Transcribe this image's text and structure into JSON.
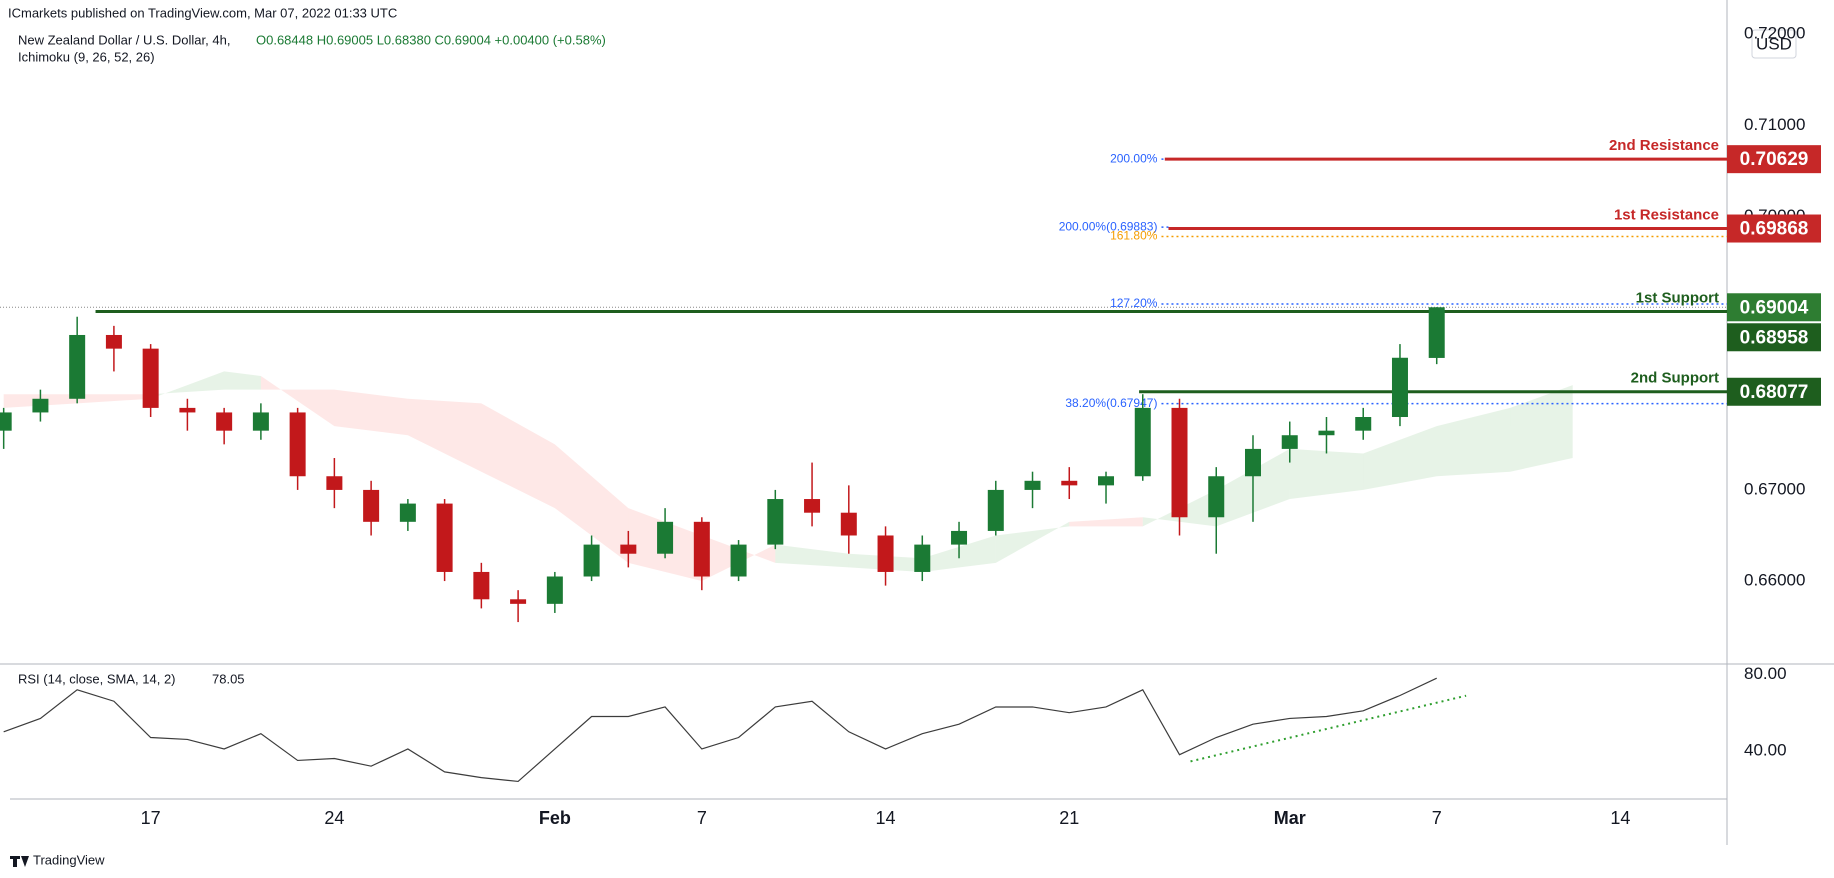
{
  "header": {
    "publisher": "ICmarkets published on TradingView.com, Mar 07, 2022 01:33 UTC",
    "symbol": "New Zealand Dollar / U.S. Dollar, 4h,",
    "ohlc": "O0.68448 H0.69005 L0.68380 C0.69004 +0.00400 (+0.58%)",
    "indicator": "Ichimoku (9, 26, 52, 26)"
  },
  "chart_data": {
    "type": "candlestick",
    "x": [
      -4,
      -3,
      -2,
      -1,
      0,
      1,
      2,
      3,
      4,
      5,
      6,
      7,
      8,
      9,
      10,
      11,
      12,
      13,
      14,
      15,
      16,
      17,
      18,
      19,
      20,
      21,
      22,
      23,
      24,
      25,
      26,
      27,
      28,
      29,
      30,
      31,
      32,
      33,
      34,
      35
    ],
    "open": [
      0.6765,
      0.6785,
      0.68,
      0.687,
      0.6855,
      0.679,
      0.6785,
      0.6765,
      0.6785,
      0.6715,
      0.67,
      0.6665,
      0.6685,
      0.661,
      0.658,
      0.6575,
      0.6605,
      0.664,
      0.663,
      0.6665,
      0.6605,
      0.664,
      0.669,
      0.6675,
      0.665,
      0.661,
      0.664,
      0.6655,
      0.67,
      0.671,
      0.6705,
      0.6715,
      0.679,
      0.667,
      0.6715,
      0.6745,
      0.676,
      0.6765,
      0.678,
      0.68448
    ],
    "high": [
      0.679,
      0.681,
      0.689,
      0.688,
      0.686,
      0.68,
      0.679,
      0.6795,
      0.679,
      0.6735,
      0.671,
      0.669,
      0.669,
      0.662,
      0.659,
      0.661,
      0.665,
      0.6655,
      0.668,
      0.667,
      0.6645,
      0.67,
      0.673,
      0.6705,
      0.666,
      0.665,
      0.6665,
      0.671,
      0.672,
      0.6725,
      0.672,
      0.6805,
      0.68,
      0.6725,
      0.676,
      0.6775,
      0.678,
      0.679,
      0.686,
      0.69005
    ],
    "low": [
      0.6745,
      0.6775,
      0.6795,
      0.683,
      0.678,
      0.6765,
      0.675,
      0.6755,
      0.67,
      0.668,
      0.665,
      0.6655,
      0.66,
      0.657,
      0.6555,
      0.6565,
      0.66,
      0.6615,
      0.6625,
      0.659,
      0.66,
      0.6635,
      0.666,
      0.663,
      0.6595,
      0.66,
      0.6625,
      0.665,
      0.668,
      0.669,
      0.6685,
      0.671,
      0.665,
      0.663,
      0.6665,
      0.673,
      0.674,
      0.6755,
      0.677,
      0.6838
    ],
    "close": [
      0.6785,
      0.68,
      0.687,
      0.6855,
      0.679,
      0.6785,
      0.6765,
      0.6785,
      0.6715,
      0.67,
      0.6665,
      0.6685,
      0.661,
      0.658,
      0.6575,
      0.6605,
      0.664,
      0.663,
      0.6665,
      0.6605,
      0.664,
      0.669,
      0.6675,
      0.665,
      0.661,
      0.664,
      0.6655,
      0.67,
      0.671,
      0.6705,
      0.6715,
      0.679,
      0.667,
      0.6715,
      0.6745,
      0.676,
      0.6765,
      0.678,
      0.6845,
      0.69004
    ],
    "up_color": "#1b7a34",
    "down_color": "#c2181b",
    "xlim": [
      -4.1,
      42.9
    ],
    "xticks": [
      {
        "value": 0,
        "label": "17"
      },
      {
        "value": 5,
        "label": "24"
      },
      {
        "value": 11,
        "label": "Feb"
      },
      {
        "value": 15,
        "label": "7"
      },
      {
        "value": 20,
        "label": "14"
      },
      {
        "value": 25,
        "label": "21"
      },
      {
        "value": 31,
        "label": "Mar"
      },
      {
        "value": 35,
        "label": "7"
      },
      {
        "value": 40,
        "label": "14"
      }
    ],
    "ylim": [
      0.6509,
      0.7209
    ],
    "yticks": [
      {
        "value": 0.66,
        "label": "0.66000"
      },
      {
        "value": 0.67,
        "label": "0.67000"
      },
      {
        "value": 0.68,
        "label": "0.68000"
      },
      {
        "value": 0.69,
        "label": "0.69000"
      },
      {
        "value": 0.7,
        "label": "0.70000"
      },
      {
        "value": 0.71,
        "label": "0.71000"
      },
      {
        "value": 0.72,
        "label": "0.72000"
      }
    ],
    "currency": "USD",
    "ichimoku": {
      "x": [
        -4,
        -2,
        0,
        2,
        3,
        5,
        7,
        9,
        11,
        13,
        15,
        17,
        19,
        21,
        23,
        25,
        27,
        29,
        31,
        33,
        35,
        37,
        38.7
      ],
      "span_a": [
        0.679,
        0.6795,
        0.68,
        0.683,
        0.6825,
        0.677,
        0.676,
        0.672,
        0.668,
        0.662,
        0.66,
        0.664,
        0.663,
        0.6625,
        0.665,
        0.666,
        0.666,
        0.67,
        0.6745,
        0.674,
        0.677,
        0.679,
        0.6815
      ],
      "span_b": [
        0.6805,
        0.6805,
        0.6805,
        0.681,
        0.681,
        0.681,
        0.68,
        0.6795,
        0.675,
        0.668,
        0.665,
        0.662,
        0.6615,
        0.661,
        0.662,
        0.6665,
        0.667,
        0.666,
        0.669,
        0.67,
        0.6715,
        0.672,
        0.6735
      ],
      "up_color": "rgba(67,160,71,0.13)",
      "down_color": "rgba(244,67,54,0.12)"
    },
    "levels": [
      {
        "name": "2nd Resistance",
        "value": 0.70629,
        "label": "0.70629",
        "color": "#c62828",
        "x_start": 27.6
      },
      {
        "name": "1st Resistance",
        "value": 0.69868,
        "label": "0.69868",
        "color": "#c62828",
        "x_start": 27.7
      },
      {
        "name": "1st Support",
        "value": 0.68958,
        "label": "0.68958",
        "color": "#1e5e1e",
        "x_start": -1.5
      },
      {
        "name": "2nd Support",
        "value": 0.68077,
        "label": "0.68077",
        "color": "#1e5e1e",
        "x_start": 26.9
      }
    ],
    "last_price": {
      "value": 0.69004,
      "label": "0.69004",
      "color": "#2e7d32"
    },
    "fibs": [
      {
        "label": "200.00%",
        "value": 0.70629,
        "color": "#2962ff",
        "x_start": 27.4,
        "extend": false
      },
      {
        "label": "200.00%(0.69883)",
        "value": 0.69883,
        "color": "#2962ff",
        "x_start": 27.4,
        "extend": false
      },
      {
        "label": "161.80%",
        "value": 0.6978,
        "color": "#f59d00",
        "x_start": 27.4,
        "extend": true
      },
      {
        "label": "127.20%",
        "value": 0.6904,
        "color": "#2962ff",
        "x_start": 27.4,
        "extend": true
      },
      {
        "label": "38.20%(0.67947)",
        "value": 0.67947,
        "color": "#2962ff",
        "x_start": 27.4,
        "extend": true
      }
    ],
    "rsi": {
      "title": "RSI (14, close, SMA, 14, 2)",
      "current": 78.05,
      "values": [
        50,
        57,
        72,
        66,
        47,
        46,
        41,
        49,
        35,
        36,
        32,
        41,
        29,
        26,
        24,
        41,
        58,
        58,
        63,
        41,
        47,
        63,
        66,
        50,
        41,
        49,
        54,
        63,
        63,
        60,
        63,
        72,
        38,
        47,
        54,
        57,
        58,
        61,
        69,
        78.05
      ],
      "color": "#3c3c3c",
      "ylim": [
        14.8,
        85.5
      ],
      "yticks": [
        {
          "value": 80,
          "label": "80.00"
        },
        {
          "value": 40,
          "label": "40.00"
        }
      ],
      "trendline": {
        "x": [
          28.3,
          35.8
        ],
        "values": [
          34.5,
          68.9
        ],
        "color": "#2e9e2e"
      }
    }
  },
  "footer": {
    "brand": "TradingView"
  }
}
